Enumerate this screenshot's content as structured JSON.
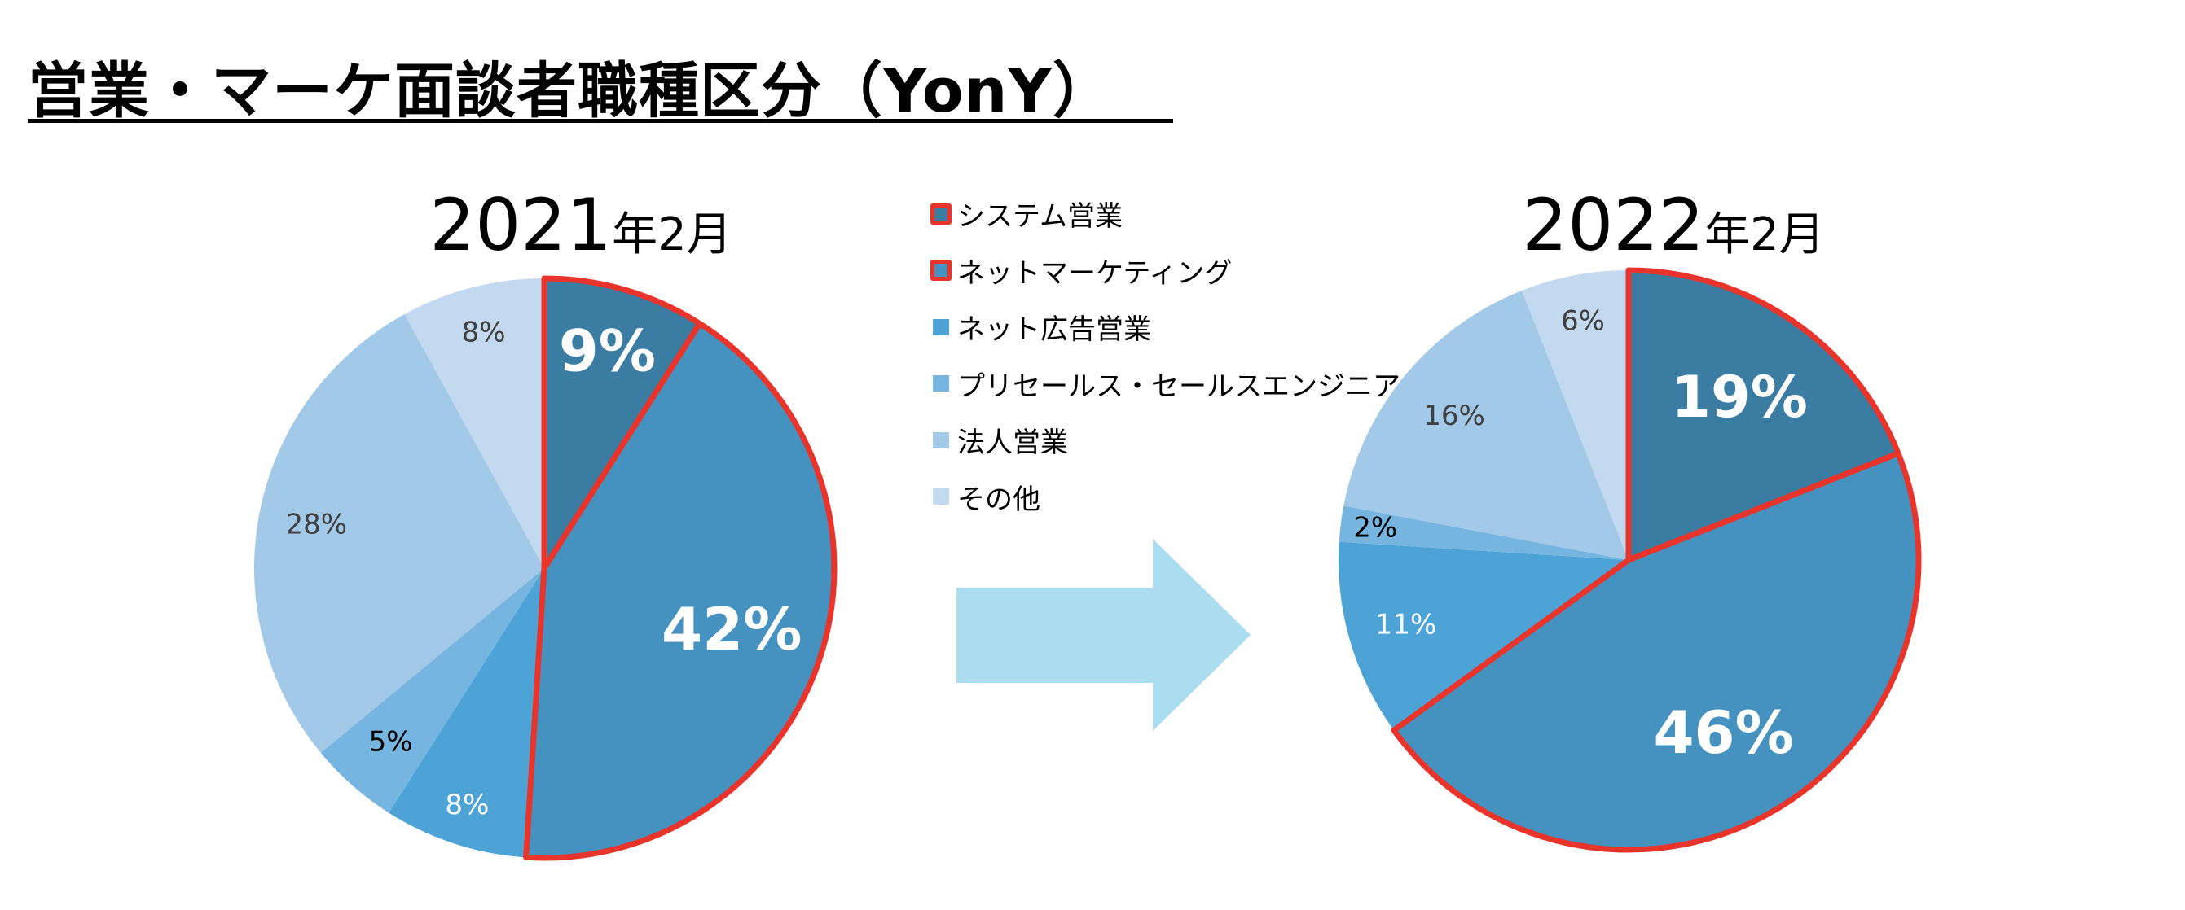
{
  "title": "営業・マーケ面談者職種区分（YonY）",
  "legend": [
    {
      "label": "システム営業",
      "color": "#3b7ca3",
      "highlighted": true
    },
    {
      "label": "ネットマーケティング",
      "color": "#4591c0",
      "highlighted": true
    },
    {
      "label": "ネット広告営業",
      "color": "#4ea3d6",
      "highlighted": false
    },
    {
      "label": "プリセールス・セールスエンジニア",
      "color": "#75b5e0",
      "highlighted": false
    },
    {
      "label": "法人営業",
      "color": "#a3c9e9",
      "highlighted": false
    },
    {
      "label": "その他",
      "color": "#c3d9ef",
      "highlighted": false
    }
  ],
  "highlight_color": "#e8342a",
  "arrow_color": "#acdcf0",
  "chart_data": [
    {
      "type": "pie",
      "title_num": "2021",
      "title_suffix": "年2月",
      "categories": [
        "システム営業",
        "ネットマーケティング",
        "ネット広告営業",
        "プリセールス・セールスエンジニア",
        "法人営業",
        "その他"
      ],
      "values": [
        9,
        42,
        8,
        5,
        28,
        8
      ],
      "labels": [
        "9%",
        "42%",
        "8%",
        "5%",
        "28%",
        "8%"
      ],
      "start": "12 o'clock, clockwise"
    },
    {
      "type": "pie",
      "title_num": "2022",
      "title_suffix": "年2月",
      "categories": [
        "システム営業",
        "ネットマーケティング",
        "ネット広告営業",
        "プリセールス・セールスエンジニア",
        "法人営業",
        "その他"
      ],
      "values": [
        19,
        46,
        11,
        2,
        16,
        6
      ],
      "labels": [
        "19%",
        "46%",
        "11%",
        "2%",
        "16%",
        "6%"
      ],
      "start": "12 o'clock, clockwise"
    }
  ]
}
